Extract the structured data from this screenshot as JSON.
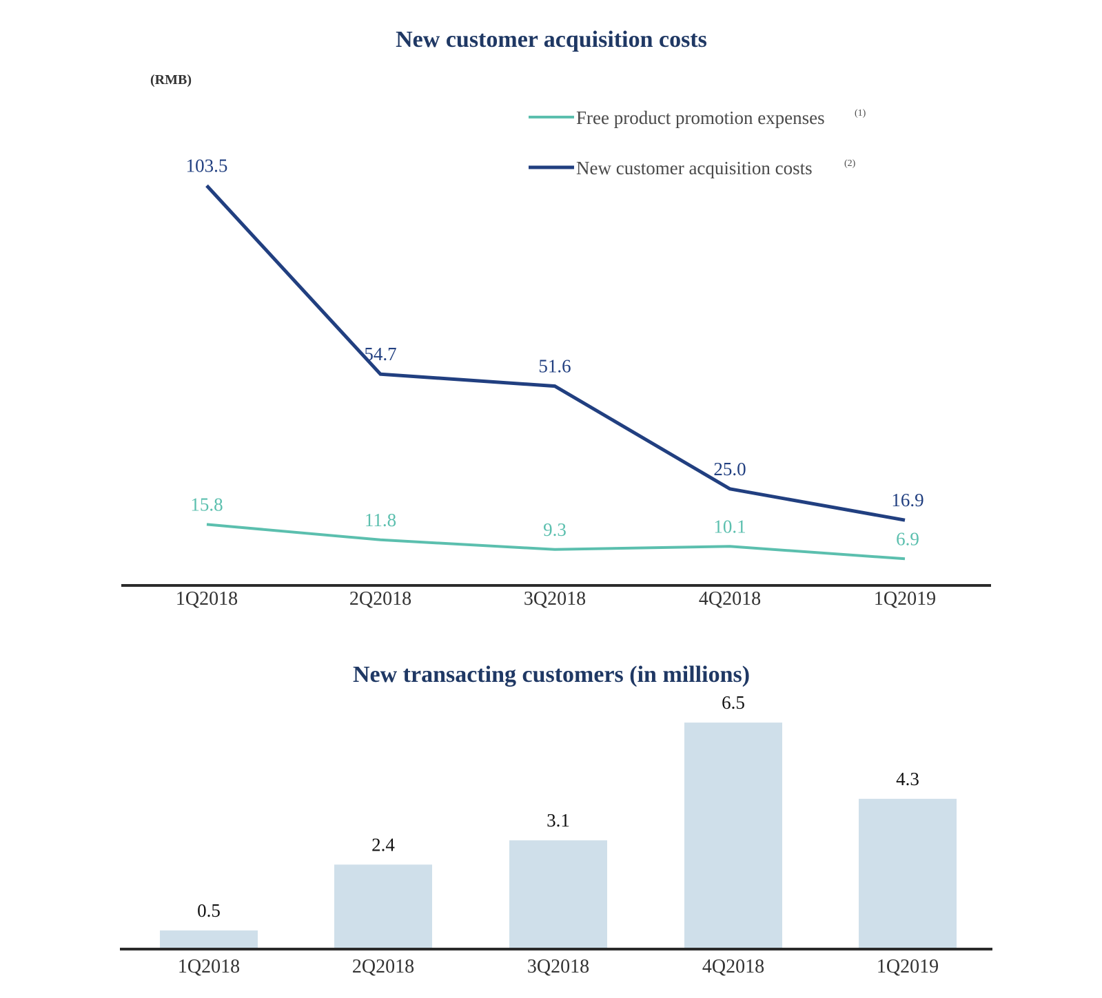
{
  "chart_data": [
    {
      "type": "line",
      "title": "New customer acquisition costs",
      "unit_label": "(RMB)",
      "categories": [
        "1Q2018",
        "2Q2018",
        "3Q2018",
        "4Q2018",
        "1Q2019"
      ],
      "ylim": [
        0,
        110
      ],
      "grid": false,
      "legend_position": "top-right",
      "series": [
        {
          "name": "Free product promotion expenses",
          "footnote": "(1)",
          "color": "#5bbfae",
          "values": [
            15.8,
            11.8,
            9.3,
            10.1,
            6.9
          ],
          "labels": [
            "15.8",
            "11.8",
            "9.3",
            "10.1",
            "6.9"
          ]
        },
        {
          "name": "New customer acquisition costs",
          "footnote": "(2)",
          "color": "#213f80",
          "values": [
            103.5,
            54.7,
            51.6,
            25.0,
            16.9
          ],
          "labels": [
            "103.5",
            "54.7",
            "51.6",
            "25.0",
            "16.9"
          ]
        }
      ]
    },
    {
      "type": "bar",
      "title": "New transacting customers (in millions)",
      "categories": [
        "1Q2018",
        "2Q2018",
        "3Q2018",
        "4Q2018",
        "1Q2019"
      ],
      "values": [
        0.5,
        2.4,
        3.1,
        6.5,
        4.3
      ],
      "labels": [
        "0.5",
        "2.4",
        "3.1",
        "6.5",
        "4.3"
      ],
      "ylim": [
        0,
        7
      ],
      "grid": false,
      "bar_color": "#cfdfea"
    }
  ],
  "colors": {
    "title": "#1f3864",
    "axis": "#2b2b2b"
  }
}
